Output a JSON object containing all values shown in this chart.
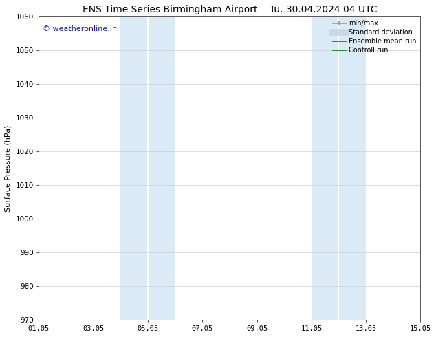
{
  "title_left": "ENS Time Series Birmingham Airport",
  "title_right": "Tu. 30.04.2024 04 UTC",
  "ylabel": "Surface Pressure (hPa)",
  "ylim": [
    970,
    1060
  ],
  "yticks": [
    970,
    980,
    990,
    1000,
    1010,
    1020,
    1030,
    1040,
    1050,
    1060
  ],
  "xtick_labels": [
    "01.05",
    "03.05",
    "05.05",
    "07.05",
    "09.05",
    "11.05",
    "13.05",
    "15.05"
  ],
  "xtick_positions": [
    0,
    2,
    4,
    6,
    8,
    10,
    12,
    14
  ],
  "xlim": [
    0,
    14
  ],
  "blue_bands": [
    {
      "xstart": 3.0,
      "xend": 3.98
    },
    {
      "xstart": 4.02,
      "xend": 5.0
    },
    {
      "xstart": 10.0,
      "xend": 10.98
    },
    {
      "xstart": 11.02,
      "xend": 12.0
    }
  ],
  "band_color": "#daeaf7",
  "watermark_text": "© weatheronline.in",
  "watermark_color": "#1a1aaa",
  "legend_items": [
    {
      "label": "min/max",
      "color": "#999999",
      "lw": 1.2,
      "ls": "-",
      "type": "errbar"
    },
    {
      "label": "Standard deviation",
      "color": "#c8d8e8",
      "lw": 7,
      "ls": "-",
      "type": "line"
    },
    {
      "label": "Ensemble mean run",
      "color": "#ff0000",
      "lw": 1.2,
      "ls": "-",
      "type": "line"
    },
    {
      "label": "Controll run",
      "color": "#008000",
      "lw": 1.2,
      "ls": "-",
      "type": "line"
    }
  ],
  "bg_color": "#ffffff",
  "grid_color": "#cccccc",
  "title_fontsize": 10,
  "tick_fontsize": 7.5,
  "ylabel_fontsize": 8,
  "legend_fontsize": 7,
  "watermark_fontsize": 8
}
